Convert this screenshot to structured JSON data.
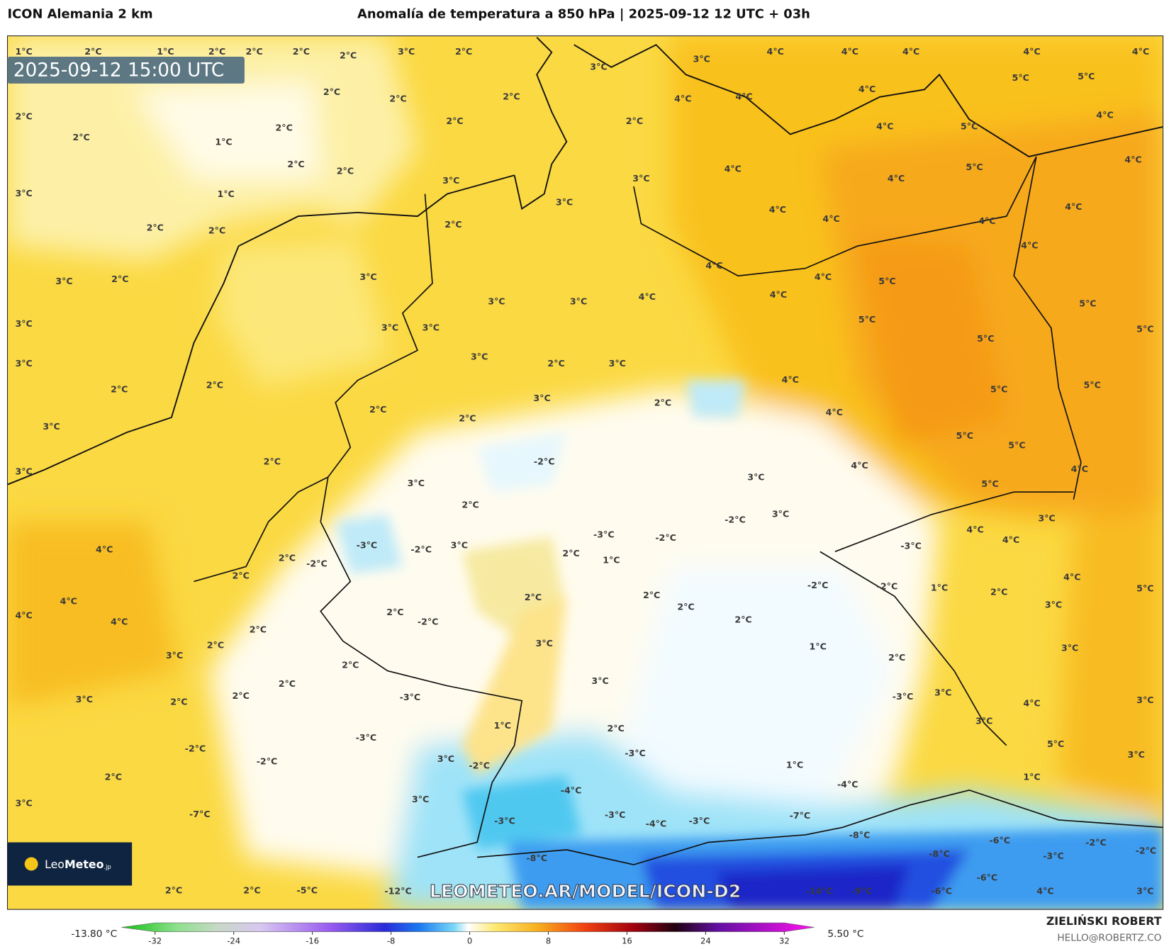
{
  "header": {
    "model": "ICON Alemania 2 km",
    "title": "Anomalía de temperatura a 850 hPa | 2025-09-12 12 UTC + 03h"
  },
  "map": {
    "valid_time": "2025-09-12 15:00 UTC",
    "watermark": "LEOMETEO.AR/MODEL/ICON-D2",
    "labels": [
      "1°C",
      "2°C",
      "1°C",
      "2°C",
      "2°C",
      "2°C",
      "2°C",
      "3°C",
      "2°C",
      "3°C",
      "3°C",
      "4°C",
      "4°C",
      "4°C",
      "4°C",
      "5°C",
      "5°C",
      "4°C",
      "2°C",
      "2°C",
      "2°C",
      "4°C",
      "4°C",
      "4°C",
      "4°C",
      "2°C",
      "2°C",
      "1°C",
      "2°C",
      "2°C",
      "2°C",
      "4°C",
      "5°C",
      "2°C",
      "2°C",
      "3°C",
      "3°C",
      "4°C",
      "4°C",
      "5°C",
      "4°C",
      "3°C",
      "1°C",
      "3°C",
      "4°C",
      "4°C",
      "2°C",
      "2°C",
      "2°C",
      "4°C",
      "4°C",
      "3°C",
      "2°C",
      "3°C",
      "4°C",
      "4°C",
      "5°C",
      "4°C",
      "3°C",
      "3°C",
      "4°C",
      "4°C",
      "5°C",
      "3°C",
      "3°C",
      "3°C",
      "5°C",
      "5°C",
      "5°C",
      "3°C",
      "3°C",
      "2°C",
      "3°C",
      "4°C",
      "5°C",
      "5°C",
      "2°C",
      "2°C",
      "3°C",
      "2°C",
      "3°C",
      "2°C",
      "2°C",
      "4°C",
      "5°C",
      "5°C",
      "3°C",
      "2°C",
      "-2°C",
      "3°C",
      "4°C",
      "5°C",
      "4°C",
      "3°C",
      "2°C",
      "-2°C",
      "3°C",
      "4°C",
      "3°C",
      "4°C",
      "-3°C",
      "-2°C",
      "3°C",
      "-3°C",
      "-2°C",
      "-3°C",
      "4°C",
      "2°C",
      "-2°C",
      "2°C",
      "1°C",
      "2°C",
      "-2°C",
      "-2°C",
      "1°C",
      "2°C",
      "4°C",
      "4°C",
      "2°C",
      "-2°C",
      "2°C",
      "2°C",
      "2°C",
      "2°C",
      "3°C",
      "5°C",
      "4°C",
      "4°C",
      "2°C",
      "3°C",
      "1°C",
      "3°C",
      "2°C",
      "3°C",
      "2°C",
      "2°C",
      "2°C",
      "3°C",
      "3°C",
      "2°C",
      "2°C",
      "-3°C",
      "-3°C",
      "3°C",
      "4°C",
      "3°C",
      "1°C",
      "2°C",
      "-3°C",
      "3°C",
      "-2°C",
      "-3°C",
      "3°C",
      "-2°C",
      "1°C",
      "5°C",
      "3°C",
      "3°C",
      "2°C",
      "-2°C",
      "-4°C",
      "-4°C",
      "3°C",
      "1°C",
      "-7°C",
      "-3°C",
      "-3°C",
      "-4°C",
      "-3°C",
      "-7°C",
      "-8°C",
      "-6°C",
      "-2°C",
      "-8°C",
      "-8°C",
      "-6°C",
      "-3°C",
      "-2°C",
      "2°C",
      "2°C",
      "-5°C",
      "-12°C",
      "-14°C",
      "-9°C",
      "-6°C",
      "4°C",
      "3°C"
    ]
  },
  "logo": {
    "brand_a": "Leo",
    "brand_b": "Meteo",
    "suffix": ".jp"
  },
  "colorbar": {
    "min_label": "-13.80 °C",
    "max_label": "5.50 °C",
    "lim": [
      -32,
      32
    ],
    "ticks": [
      -32,
      -24,
      -16,
      -8,
      0,
      8,
      16,
      24,
      32
    ]
  },
  "credits": {
    "author": "ZIELIŃSKI ROBERT",
    "contact": "HELLO@ROBERTZ.CO"
  }
}
